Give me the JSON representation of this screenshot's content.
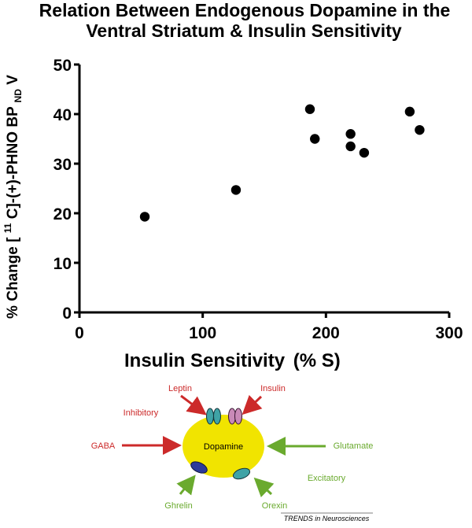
{
  "chart_data": {
    "type": "scatter",
    "title_line1": "Relation  Between Endogenous  Dopamine in the",
    "title_line2": "Ventral  Striatum & Insulin Sensitivity",
    "xlabel_main": "Insulin Sensitivity",
    "xlabel_unit": "(% S)",
    "ylabel_pre": "% Change [",
    "ylabel_sup": "11",
    "ylabel_mid": "C]-(+)-PHNO BP",
    "ylabel_sub": "ND",
    "ylabel_post": " V",
    "xlim": [
      0,
      300
    ],
    "ylim": [
      0,
      50
    ],
    "x_ticks": [
      0,
      100,
      200,
      300
    ],
    "y_ticks": [
      0,
      10,
      20,
      30,
      40,
      50
    ],
    "x_tick_labels": [
      "0",
      "100",
      "200",
      "300"
    ],
    "y_tick_labels": [
      "0",
      "10",
      "20",
      "30",
      "40",
      "50"
    ],
    "x": [
      53,
      127,
      187,
      191,
      220,
      220,
      231,
      268,
      276
    ],
    "y": [
      19.3,
      24.7,
      41.0,
      35.0,
      36.0,
      33.5,
      32.2,
      40.5,
      36.8
    ],
    "grid": false
  },
  "diagram": {
    "center_label": "Dopamine",
    "inhibitory_label": "Inhibitory",
    "excitatory_label": "Excitatory",
    "leptin_label": "Leptin",
    "insulin_label": "Insulin",
    "gaba_label": "GABA",
    "glutamate_label": "Glutamate",
    "ghrelin_label": "Ghrelin",
    "orexin_label": "Orexin",
    "footer_label": "TRENDS in Neurosciences",
    "colors": {
      "inhibitory": "#cc2a2a",
      "excitatory": "#6aaa2e",
      "ellipse": "#f1e400"
    }
  }
}
